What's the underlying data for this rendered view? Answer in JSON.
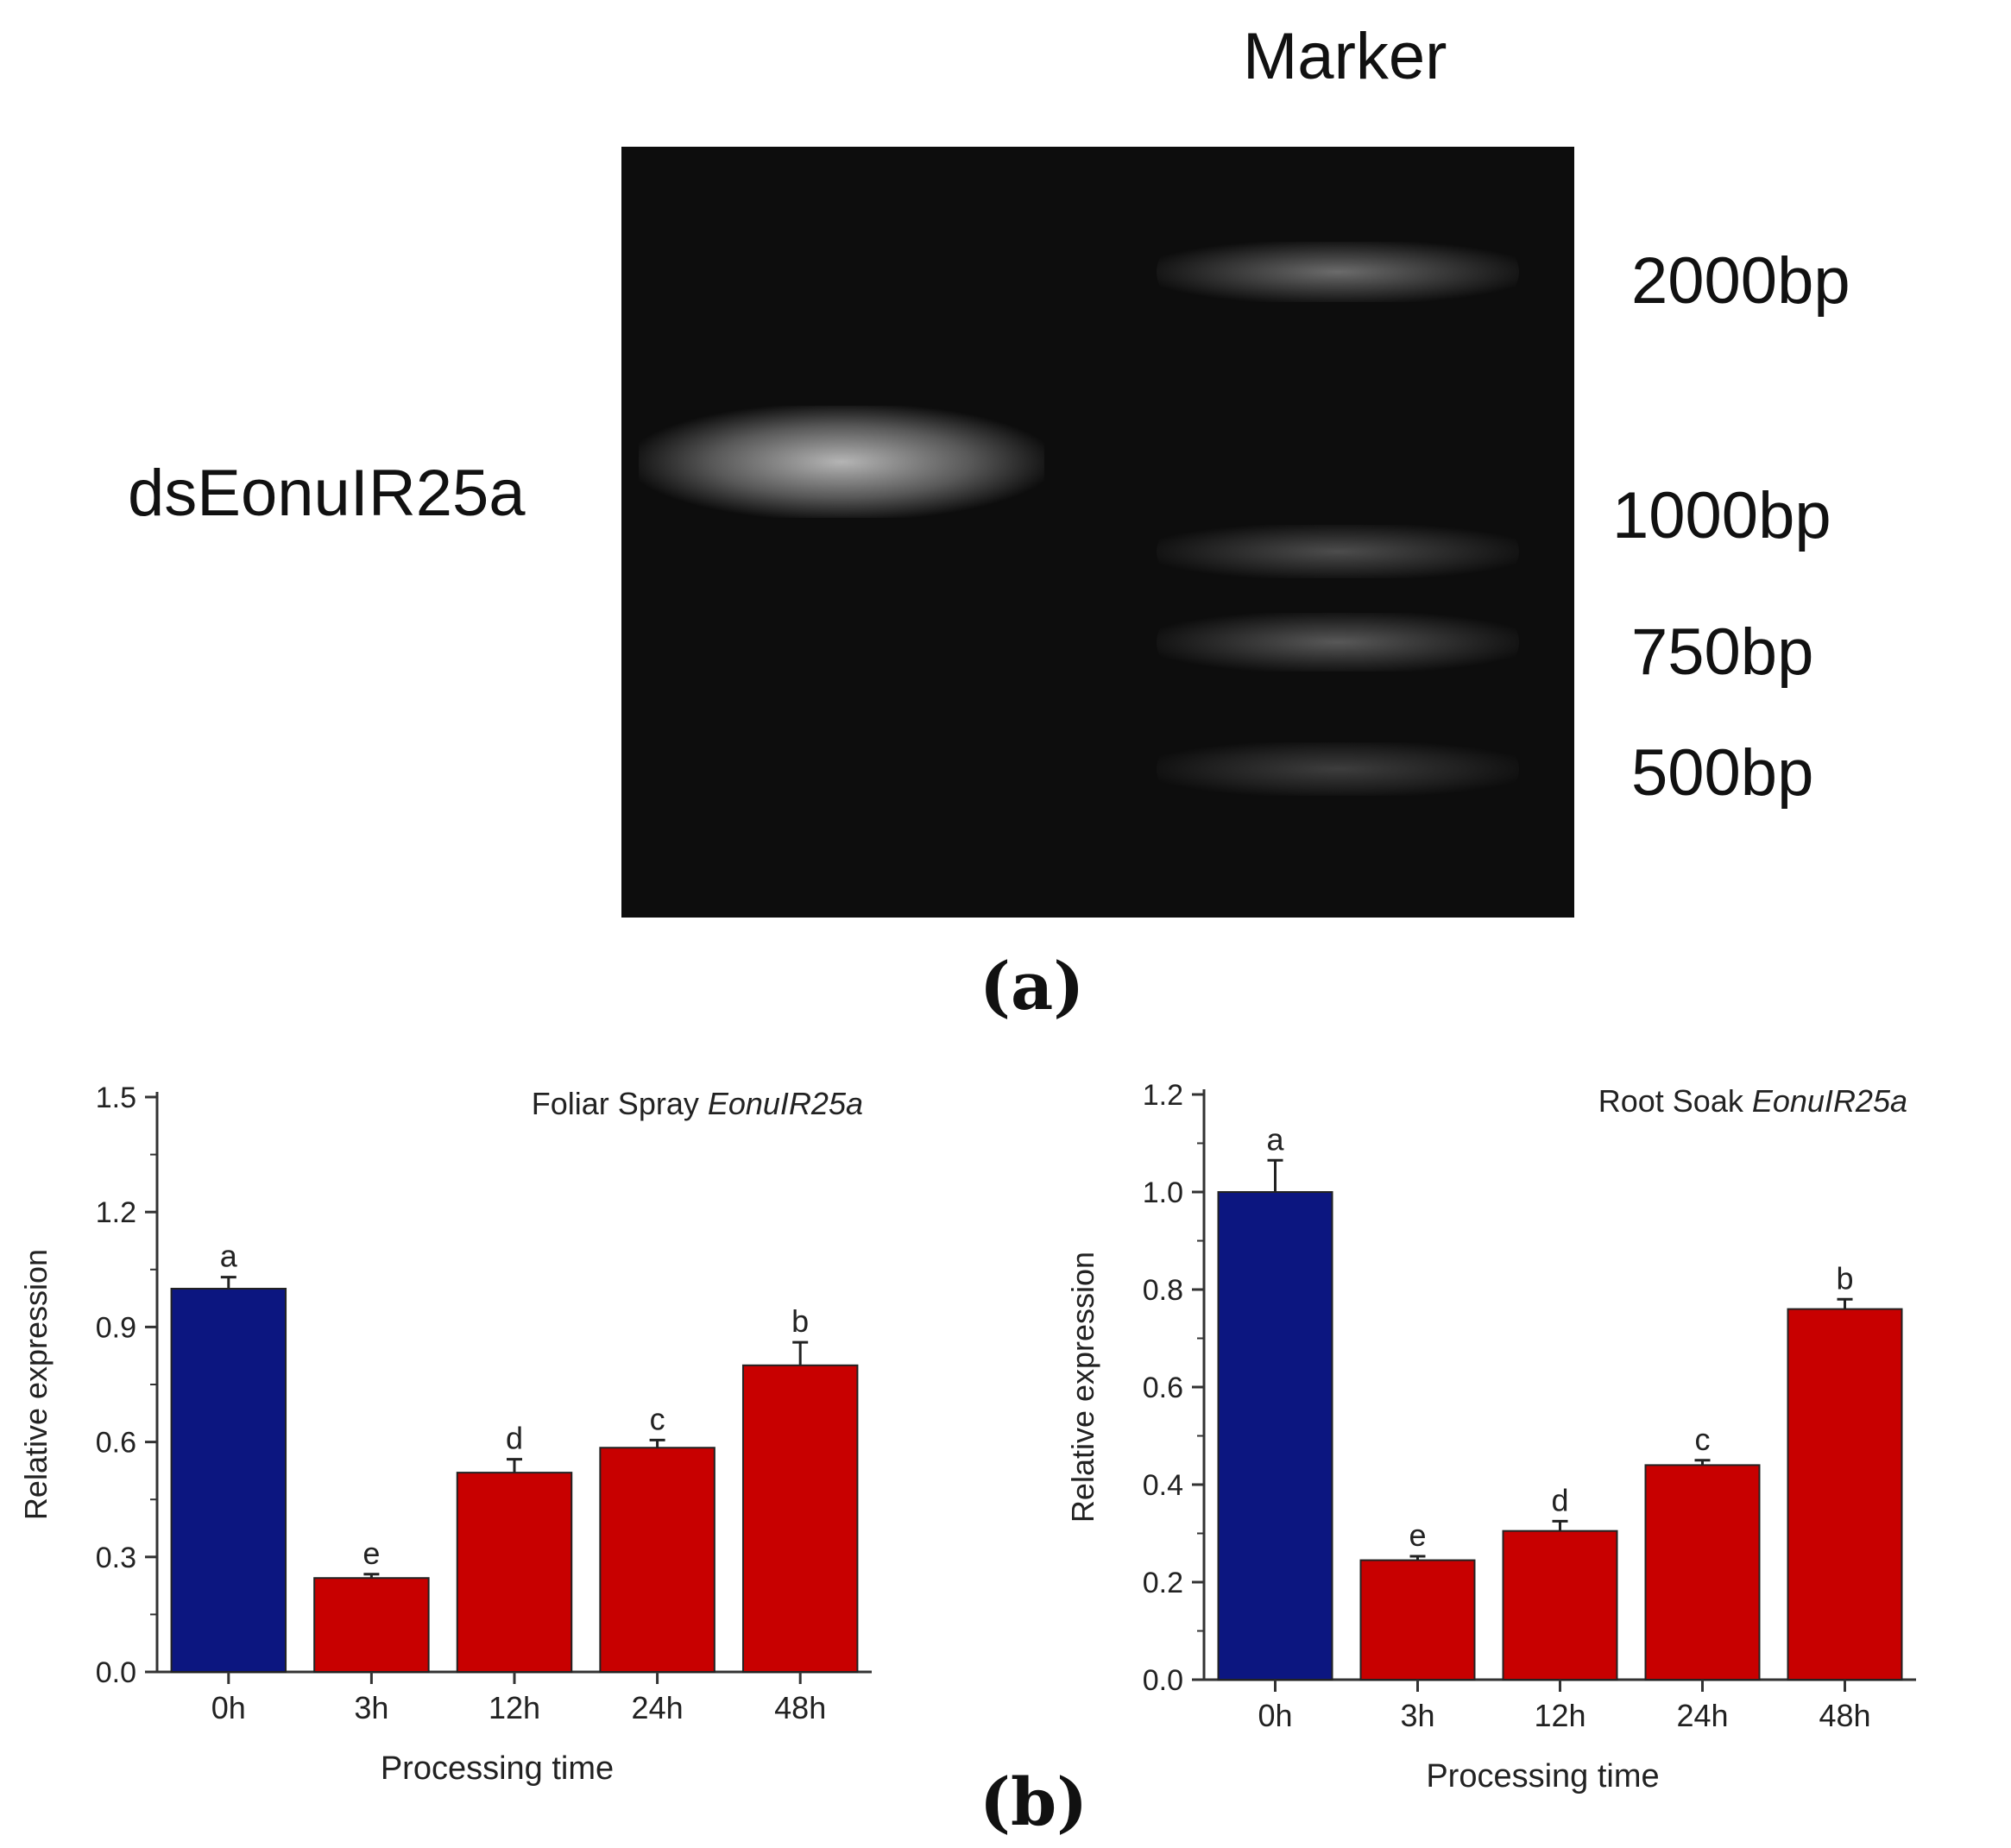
{
  "gel": {
    "marker_label": "Marker",
    "sample_label": "dsEonuIR25a",
    "bands": [
      "2000bp",
      "1000bp",
      "750bp",
      "500bp"
    ],
    "panel_label": "(a)"
  },
  "panel_b_label": "(b)",
  "chart_data": [
    {
      "type": "bar",
      "title": "Foliar Spray",
      "title_italic": "EonuIR25a",
      "xlabel": "Processing time",
      "ylabel": "Relative expression",
      "categories": [
        "0h",
        "3h",
        "12h",
        "24h",
        "48h"
      ],
      "values": [
        1.0,
        0.245,
        0.52,
        0.585,
        0.8
      ],
      "errors": [
        0.03,
        0.01,
        0.035,
        0.02,
        0.06
      ],
      "letters": [
        "a",
        "e",
        "d",
        "c",
        "b"
      ],
      "colors": [
        "#0c1680",
        "#c80000",
        "#c80000",
        "#c80000",
        "#c80000"
      ],
      "ylim": [
        0,
        1.5
      ],
      "yticks": [
        "0.0",
        "0.3",
        "0.6",
        "0.9",
        "1.2",
        "1.5"
      ]
    },
    {
      "type": "bar",
      "title": "Root Soak",
      "title_italic": "EonuIR25a",
      "xlabel": "Processing time",
      "ylabel": "Relative expression",
      "categories": [
        "0h",
        "3h",
        "12h",
        "24h",
        "48h"
      ],
      "values": [
        1.0,
        0.245,
        0.305,
        0.44,
        0.76
      ],
      "errors": [
        0.065,
        0.008,
        0.02,
        0.01,
        0.02
      ],
      "letters": [
        "a",
        "e",
        "d",
        "c",
        "b"
      ],
      "colors": [
        "#0c1680",
        "#c80000",
        "#c80000",
        "#c80000",
        "#c80000"
      ],
      "ylim": [
        0,
        1.2
      ],
      "yticks": [
        "0.0",
        "0.2",
        "0.4",
        "0.6",
        "0.8",
        "1.0",
        "1.2"
      ]
    }
  ]
}
